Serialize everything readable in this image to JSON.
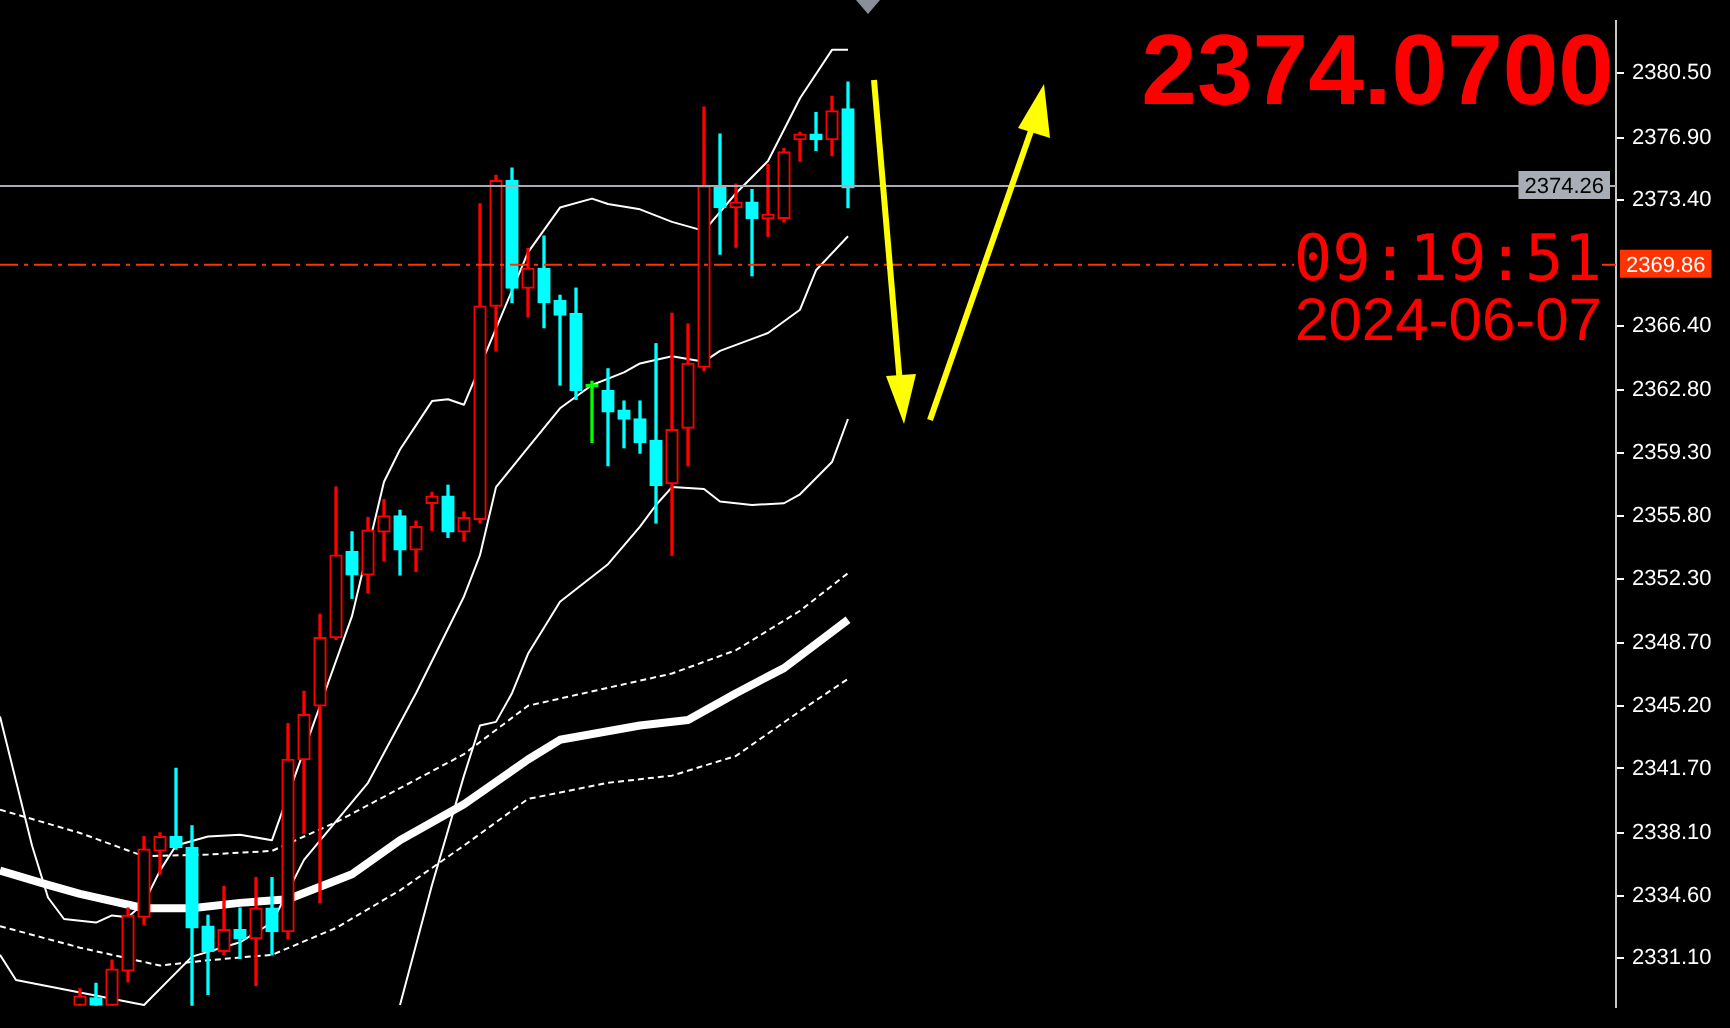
{
  "chart_data": {
    "type": "candlestick",
    "categories": [
      null,
      null,
      null,
      null,
      null,
      null,
      null,
      null,
      null,
      null,
      null,
      null,
      null,
      null,
      null,
      null,
      null,
      null,
      null,
      null,
      null,
      null,
      null,
      null,
      null,
      null,
      null,
      null,
      null,
      null,
      null,
      null,
      null,
      null,
      null,
      null,
      null,
      null,
      null,
      null,
      null,
      null,
      null,
      null,
      null,
      null,
      null,
      null,
      null,
      null,
      null,
      null,
      null,
      null,
      null,
      null,
      null,
      null,
      null,
      null,
      null,
      null,
      null,
      null,
      null,
      null,
      null,
      null,
      null,
      null,
      null,
      null,
      null,
      null,
      null,
      null,
      null,
      null,
      null,
      null,
      null,
      null,
      null,
      null,
      null,
      null,
      null,
      null,
      null,
      null,
      null,
      null,
      null,
      null,
      null,
      null,
      null,
      null,
      null,
      null,
      null,
      null
    ],
    "ohlc": [
      null,
      null,
      null,
      null,
      null,
      [
        2328.5,
        2329.4,
        2328.5,
        2329.0
      ],
      [
        2328.9,
        2329.7,
        2328.5,
        2328.5
      ],
      [
        2328.5,
        2331.0,
        2328.5,
        2330.5
      ],
      [
        2330.4,
        2333.9,
        2329.8,
        2333.5
      ],
      [
        2333.4,
        2337.9,
        2333.0,
        2337.2
      ],
      [
        2337.1,
        2338.1,
        2335.8,
        2337.9
      ],
      [
        2337.9,
        2341.7,
        2337.2,
        2337.3
      ],
      [
        2337.3,
        2338.5,
        2328.5,
        2332.8
      ],
      [
        2332.9,
        2333.5,
        2329.1,
        2331.5
      ],
      [
        2331.5,
        2335.1,
        2331.3,
        2332.7
      ],
      [
        2332.7,
        2333.9,
        2331.1,
        2332.2
      ],
      [
        2332.2,
        2335.6,
        2329.6,
        2333.9
      ],
      [
        2333.9,
        2335.6,
        2331.3,
        2332.6
      ],
      [
        2332.6,
        2344.2,
        2332.2,
        2342.2
      ],
      [
        2342.2,
        2346.0,
        2338.1,
        2344.7
      ],
      [
        2345.2,
        2350.3,
        2334.2,
        2349.0
      ],
      [
        2349.0,
        2357.4,
        2348.9,
        2353.6
      ],
      [
        2353.8,
        2354.9,
        2351.2,
        2352.5
      ],
      [
        2352.5,
        2355.7,
        2351.5,
        2355.0
      ],
      [
        2354.9,
        2356.7,
        2353.3,
        2355.8
      ],
      [
        2355.8,
        2356.1,
        2352.5,
        2353.9
      ],
      [
        2353.9,
        2355.5,
        2352.7,
        2355.2
      ],
      [
        2356.5,
        2357.1,
        2355.0,
        2356.9
      ],
      [
        2356.9,
        2357.5,
        2354.6,
        2354.9
      ],
      [
        2354.9,
        2356.0,
        2354.4,
        2355.7
      ],
      [
        2355.6,
        2373.2,
        2355.4,
        2367.5
      ],
      [
        2367.5,
        2374.8,
        2365.0,
        2374.5
      ],
      [
        2374.5,
        2375.2,
        2367.7,
        2368.5
      ],
      [
        2368.5,
        2370.7,
        2366.9,
        2369.6
      ],
      [
        2369.6,
        2371.4,
        2366.3,
        2367.7
      ],
      [
        2367.8,
        2368.1,
        2363.1,
        2367.0
      ],
      [
        2367.1,
        2368.5,
        2362.3,
        2362.8
      ],
      [
        2363.0,
        2363.3,
        2359.9,
        2363.0
      ],
      [
        2362.8,
        2364.0,
        2358.6,
        2361.6
      ],
      [
        2361.7,
        2362.2,
        2359.6,
        2361.2
      ],
      [
        2361.2,
        2362.2,
        2359.3,
        2359.9
      ],
      [
        2360.0,
        2365.4,
        2355.4,
        2357.5
      ],
      [
        2357.6,
        2367.1,
        2353.6,
        2360.6
      ],
      [
        2360.7,
        2366.5,
        2358.6,
        2364.3
      ],
      [
        2364.1,
        2378.6,
        2363.9,
        2374.2
      ],
      [
        2374.2,
        2377.1,
        2370.4,
        2373.0
      ],
      [
        2373.0,
        2374.3,
        2370.8,
        2373.3
      ],
      [
        2373.3,
        2374.0,
        2369.2,
        2372.4
      ],
      [
        2372.4,
        2375.4,
        2371.4,
        2372.6
      ],
      [
        2372.4,
        2376.3,
        2372.2,
        2376.1
      ],
      [
        2376.8,
        2377.2,
        2375.6,
        2377.1
      ],
      [
        2377.1,
        2378.3,
        2376.2,
        2376.8
      ],
      [
        2376.8,
        2379.2,
        2375.9,
        2378.4
      ],
      [
        2378.5,
        2380.0,
        2373.0,
        2374.1
      ],
      null,
      null,
      null,
      null,
      null,
      null,
      null,
      null,
      null,
      null,
      null,
      null,
      null,
      null,
      null,
      null,
      null,
      null,
      null,
      null,
      null,
      null,
      null,
      null,
      null,
      null,
      null,
      null,
      null,
      null,
      null,
      null,
      null,
      null,
      null,
      null,
      null,
      null,
      null,
      null,
      null,
      null,
      null,
      null,
      null,
      null,
      null,
      null
    ],
    "colors": [
      null,
      null,
      null,
      null,
      null,
      "#ff0000",
      "#00ffff",
      "#ff0000",
      "#ff0000",
      "#ff0000",
      "#ff0000",
      "#00ffff",
      "#00ffff",
      "#00ffff",
      "#ff0000",
      "#00ffff",
      "#ff0000",
      "#00ffff",
      "#ff0000",
      "#ff0000",
      "#ff0000",
      "#ff0000",
      "#00ffff",
      "#ff0000",
      "#ff0000",
      "#00ffff",
      "#ff0000",
      "#ff0000",
      "#00ffff",
      "#ff0000",
      "#ff0000",
      "#ff0000",
      "#00ffff",
      "#ff0000",
      "#00ffff",
      "#00ffff",
      "#00ffff",
      "#00ff00",
      "#00ffff",
      "#00ffff",
      "#00ffff",
      "#00ffff",
      "#ff0000",
      "#ff0000",
      "#ff0000",
      "#00ffff",
      "#ff0000",
      "#00ffff",
      "#ff0000",
      "#ff0000",
      "#ff0000",
      "#00ffff",
      "#ff0000",
      "#00ffff",
      null,
      null,
      null,
      null,
      null,
      null,
      null,
      null,
      null,
      null,
      null,
      null,
      null,
      null,
      null,
      null,
      null,
      null,
      null,
      null,
      null,
      null,
      null,
      null,
      null,
      null,
      null,
      null,
      null,
      null,
      null,
      null,
      null,
      null,
      null,
      null,
      null,
      null,
      null,
      null,
      null,
      null,
      null,
      null,
      null,
      null,
      null,
      null
    ],
    "series": [
      {
        "type": "line",
        "color": "#ffffff",
        "line_style": "solid",
        "values": [
          2336.0,
          null,
          null,
          2335.2,
          null,
          2334.7,
          null,
          null,
          null,
          2333.9,
          null,
          null,
          2333.9,
          null,
          null,
          2334.2,
          null,
          null,
          2334.4,
          null,
          null,
          null,
          2335.8,
          null,
          null,
          2337.7,
          null,
          null,
          null,
          2339.7,
          null,
          null,
          null,
          2342.2,
          null,
          2343.3,
          null,
          null,
          null,
          null,
          2344.1,
          null,
          null,
          2344.4,
          null,
          null,
          2345.9,
          null,
          null,
          2347.3,
          null,
          null,
          null,
          2350.0,
          null,
          null,
          null,
          null,
          null,
          null,
          null,
          null,
          null,
          null,
          null,
          null,
          null,
          null,
          null,
          null,
          null,
          null,
          null,
          null,
          null,
          null,
          null,
          null,
          null,
          null,
          null,
          null,
          null,
          null,
          null,
          null,
          null,
          null,
          null,
          null,
          null,
          null,
          null,
          null,
          null,
          null,
          null,
          null,
          null,
          null,
          null,
          null
        ]
      },
      {
        "type": "line",
        "color": "#ffffff",
        "line_style": "solid",
        "values": [
          2344.6,
          null,
          2337.4,
          2334.5,
          2333.3,
          null,
          2333.1,
          2333.5,
          2333.4,
          2334.2,
          2336.0,
          2337.4,
          null,
          2337.9,
          null,
          2338.0,
          null,
          2337.7,
          null,
          null,
          2345.2,
          null,
          2350.2,
          null,
          2357.7,
          2359.5,
          null,
          2362.2,
          2362.3,
          2362.0,
          null,
          null,
          null,
          2370.5,
          null,
          2373.0,
          null,
          2373.5,
          2373.2,
          null,
          2372.9,
          null,
          2372.2,
          null,
          2371.7,
          null,
          2373.8,
          null,
          2375.6,
          null,
          2379.1,
          null,
          2381.8,
          2381.8,
          null,
          null,
          null,
          null,
          null,
          null,
          null,
          null,
          null,
          null,
          null,
          null,
          null,
          null,
          null,
          null,
          null,
          null,
          null,
          null,
          null,
          null,
          null,
          null,
          null,
          null,
          null,
          null,
          null,
          null,
          null,
          null,
          null,
          null,
          null,
          null,
          null,
          null,
          null,
          null,
          null,
          null,
          null,
          null,
          null,
          null,
          null,
          null
        ]
      },
      {
        "type": "line",
        "color": "#ffffff",
        "line_style": "solid",
        "values": [
          2331.3,
          2329.9,
          null,
          null,
          null,
          null,
          null,
          null,
          null,
          2328.5,
          null,
          null,
          2331.2,
          null,
          null,
          2332.0,
          null,
          2333.1,
          null,
          2336.6,
          null,
          null,
          null,
          2340.9,
          null,
          null,
          2345.9,
          null,
          null,
          2351.3,
          2353.6,
          2357.4,
          null,
          2359.6,
          null,
          2361.8,
          null,
          2363.1,
          null,
          2363.8,
          2364.3,
          null,
          2364.7,
          null,
          2364.4,
          2365.0,
          null,
          null,
          2366.0,
          null,
          2367.3,
          2369.5,
          null,
          2371.4,
          null,
          null,
          null,
          null,
          null,
          null,
          null,
          null,
          null,
          null,
          null,
          null,
          null,
          null,
          null,
          null,
          null,
          null,
          null,
          null,
          null,
          null,
          null,
          null,
          null,
          null,
          null,
          null,
          null,
          null,
          null,
          null,
          null,
          null,
          null,
          null,
          null,
          null,
          null,
          null,
          null,
          null,
          null,
          null,
          null,
          null,
          null,
          null
        ]
      },
      {
        "type": "line",
        "color": "#ffffff",
        "line_style": "solid",
        "values": [
          null,
          null,
          null,
          null,
          null,
          null,
          null,
          null,
          null,
          null,
          null,
          null,
          null,
          null,
          null,
          null,
          null,
          null,
          null,
          null,
          null,
          null,
          null,
          null,
          null,
          2328.5,
          null,
          2335.2,
          null,
          2341.3,
          2344.1,
          2344.3,
          2345.9,
          2348.1,
          null,
          2351.0,
          null,
          null,
          2353.1,
          null,
          2355.2,
          2356.4,
          2357.4,
          null,
          2357.3,
          2356.6,
          null,
          2356.4,
          null,
          2356.5,
          2357.0,
          null,
          2358.8,
          2361.2,
          null,
          null,
          null,
          null,
          null,
          null,
          null,
          null,
          null,
          null,
          null,
          null,
          null,
          null,
          null,
          null,
          null,
          null,
          null,
          null,
          null,
          null,
          null,
          null,
          null,
          null,
          null,
          null,
          null,
          null,
          null,
          null,
          null,
          null,
          null,
          null,
          null,
          null,
          null,
          null,
          null,
          null,
          null,
          null,
          null,
          null,
          null,
          null
        ]
      },
      {
        "type": "line",
        "color": "#ffffff",
        "line_style": "dashed",
        "values": [
          2339.4,
          null,
          null,
          null,
          null,
          2338.1,
          null,
          null,
          null,
          2336.8,
          null,
          null,
          null,
          2336.9,
          null,
          null,
          null,
          2337.1,
          null,
          null,
          null,
          2338.7,
          null,
          null,
          null,
          2340.6,
          null,
          null,
          null,
          2342.5,
          null,
          null,
          null,
          2345.2,
          null,
          null,
          null,
          null,
          2346.2,
          null,
          null,
          null,
          2347.0,
          null,
          null,
          null,
          2348.3,
          null,
          null,
          null,
          2350.5,
          null,
          null,
          2352.6,
          null,
          null,
          null,
          null,
          null,
          null,
          null,
          null,
          null,
          null,
          null,
          null,
          null,
          null,
          null,
          null,
          null,
          null,
          null,
          null,
          null,
          null,
          null,
          null,
          null,
          null,
          null,
          null,
          null,
          null,
          null,
          null,
          null,
          null,
          null,
          null,
          null,
          null,
          null,
          null,
          null,
          null,
          null,
          null,
          null,
          null,
          null,
          null
        ]
      },
      {
        "type": "line",
        "color": "#ffffff",
        "line_style": "dashed",
        "values": [
          2332.9,
          null,
          null,
          null,
          null,
          2331.7,
          null,
          null,
          null,
          null,
          2330.7,
          null,
          null,
          2331.0,
          null,
          null,
          null,
          2331.3,
          null,
          null,
          null,
          2332.8,
          null,
          null,
          null,
          2334.9,
          null,
          null,
          null,
          2337.4,
          null,
          null,
          null,
          2340.0,
          null,
          null,
          null,
          null,
          2340.9,
          null,
          null,
          null,
          2341.3,
          null,
          null,
          null,
          2342.4,
          null,
          null,
          null,
          2344.9,
          null,
          null,
          2346.7,
          null,
          null,
          null,
          null,
          null,
          null,
          null,
          null,
          null,
          null,
          null,
          null,
          null,
          null,
          null,
          null,
          null,
          null,
          null,
          null,
          null,
          null,
          null,
          null,
          null,
          null,
          null,
          null,
          null,
          null,
          null,
          null,
          null,
          null,
          null,
          null,
          null,
          null,
          null,
          null,
          null,
          null,
          null,
          null,
          null,
          null,
          null,
          null
        ]
      }
    ],
    "ylim": [
      2328.4,
      2383.4
    ],
    "yticks": [
      {
        "value": 2380.5,
        "label": "2380.50"
      },
      {
        "value": 2376.9,
        "label": "2376.90"
      },
      {
        "value": 2373.4,
        "label": "2373.40"
      },
      {
        "value": 2366.4,
        "label": "2366.40"
      },
      {
        "value": 2362.8,
        "label": "2362.80"
      },
      {
        "value": 2359.3,
        "label": "2359.30"
      },
      {
        "value": 2355.8,
        "label": "2355.80"
      },
      {
        "value": 2352.3,
        "label": "2352.30"
      },
      {
        "value": 2348.7,
        "label": "2348.70"
      },
      {
        "value": 2345.2,
        "label": "2345.20"
      },
      {
        "value": 2341.7,
        "label": "2341.70"
      },
      {
        "value": 2338.1,
        "label": "2338.10"
      },
      {
        "value": 2334.6,
        "label": "2334.60"
      },
      {
        "value": 2331.1,
        "label": "2331.10"
      }
    ],
    "ref_lines": [
      {
        "axis": "y",
        "value": 2374.26,
        "label": "2374.26",
        "color": "#a9adb5",
        "line_style": "solid"
      },
      {
        "axis": "y",
        "value": 2369.86,
        "label": "2369.86",
        "color": "#ff3300",
        "line_style": "dashed"
      }
    ],
    "annotations": [
      "2374.0700",
      "09:19:51",
      "2024-06-07"
    ],
    "tick_labels": "y",
    "grid": false,
    "legend": false
  }
}
